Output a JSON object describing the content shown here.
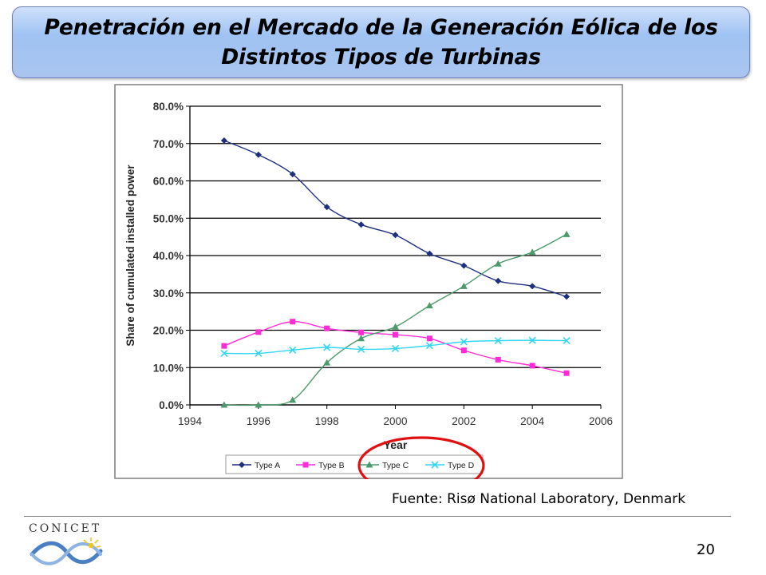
{
  "slide": {
    "title": "Penetración en el Mercado de la Generación Eólica de los Distintos Tipos de Turbinas",
    "source": "Fuente: Risø National Laboratory, Denmark",
    "page_number": "20",
    "logo_text": "CONICET"
  },
  "colors": {
    "type_a": "#1f2f7f",
    "type_b": "#ff2bd6",
    "type_c": "#4c9a6b",
    "type_d": "#33d6f2",
    "highlight_circle": "#e01010"
  },
  "chart_data": {
    "type": "line",
    "title": "",
    "xlabel": "Year",
    "ylabel": "Share of cumulated installed power",
    "xlim": [
      1994,
      2006
    ],
    "ylim": [
      0,
      80
    ],
    "x_ticks": [
      "1994",
      "1996",
      "1998",
      "2000",
      "2002",
      "2004",
      "2006"
    ],
    "y_ticks": [
      "0.0%",
      "10.0%",
      "20.0%",
      "30.0%",
      "40.0%",
      "50.0%",
      "60.0%",
      "70.0%",
      "80.0%"
    ],
    "grid": "horizontal",
    "legend_position": "bottom",
    "x": [
      1995,
      1996,
      1997,
      1998,
      1999,
      2000,
      2001,
      2002,
      2003,
      2004,
      2005
    ],
    "series": [
      {
        "name": "Type A",
        "marker": "diamond",
        "color": "#1f2f7f",
        "values": [
          70.8,
          67.0,
          61.8,
          53.0,
          48.3,
          45.5,
          40.5,
          37.3,
          33.2,
          31.8,
          29.0
        ]
      },
      {
        "name": "Type B",
        "marker": "square",
        "color": "#ff2bd6",
        "values": [
          15.8,
          19.5,
          22.3,
          20.5,
          19.4,
          18.8,
          17.8,
          14.6,
          12.1,
          10.5,
          8.5
        ]
      },
      {
        "name": "Type C",
        "marker": "triangle",
        "color": "#4c9a6b",
        "values": [
          0.0,
          0.0,
          1.3,
          11.3,
          17.8,
          20.9,
          26.6,
          31.8,
          37.8,
          40.9,
          45.7
        ]
      },
      {
        "name": "Type D",
        "marker": "x",
        "color": "#33d6f2",
        "values": [
          13.8,
          13.8,
          14.7,
          15.4,
          14.9,
          15.1,
          15.9,
          16.9,
          17.2,
          17.3,
          17.2
        ]
      }
    ],
    "annotation": "red circle highlighting Type C and Type D legend entries"
  }
}
